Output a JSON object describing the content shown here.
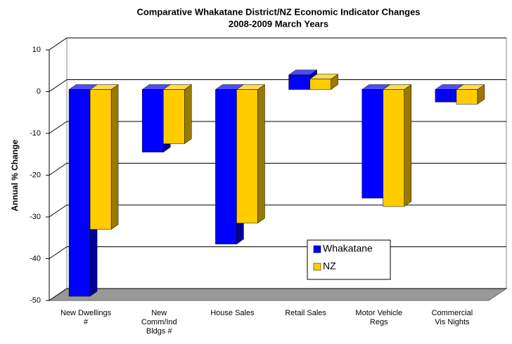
{
  "chart_data": {
    "type": "bar3d",
    "title": "Comparative Whakatane District/NZ Economic Indicator Changes",
    "subtitle": "2008-2009 March Years",
    "y_label": "Annual % Change",
    "categories": [
      "New Dwellings\n#",
      "New\nComm/Ind\nBldgs #",
      "House Sales",
      "Retail Sales",
      "Motor Vehicle\nRegs",
      "Commercial\nVis Nights"
    ],
    "series": [
      {
        "name": "Whakatane",
        "color": "#0000ff",
        "values": [
          -49.5,
          -15,
          -37,
          3.5,
          -26,
          -3
        ]
      },
      {
        "name": "NZ",
        "color": "#ffcc00",
        "values": [
          -33.5,
          -13,
          -32,
          2.5,
          -28,
          -3.5
        ]
      }
    ],
    "ylim": [
      -50,
      10
    ],
    "yticks": [
      -50,
      -40,
      -30,
      -20,
      -10,
      0,
      10
    ],
    "grid": true
  }
}
